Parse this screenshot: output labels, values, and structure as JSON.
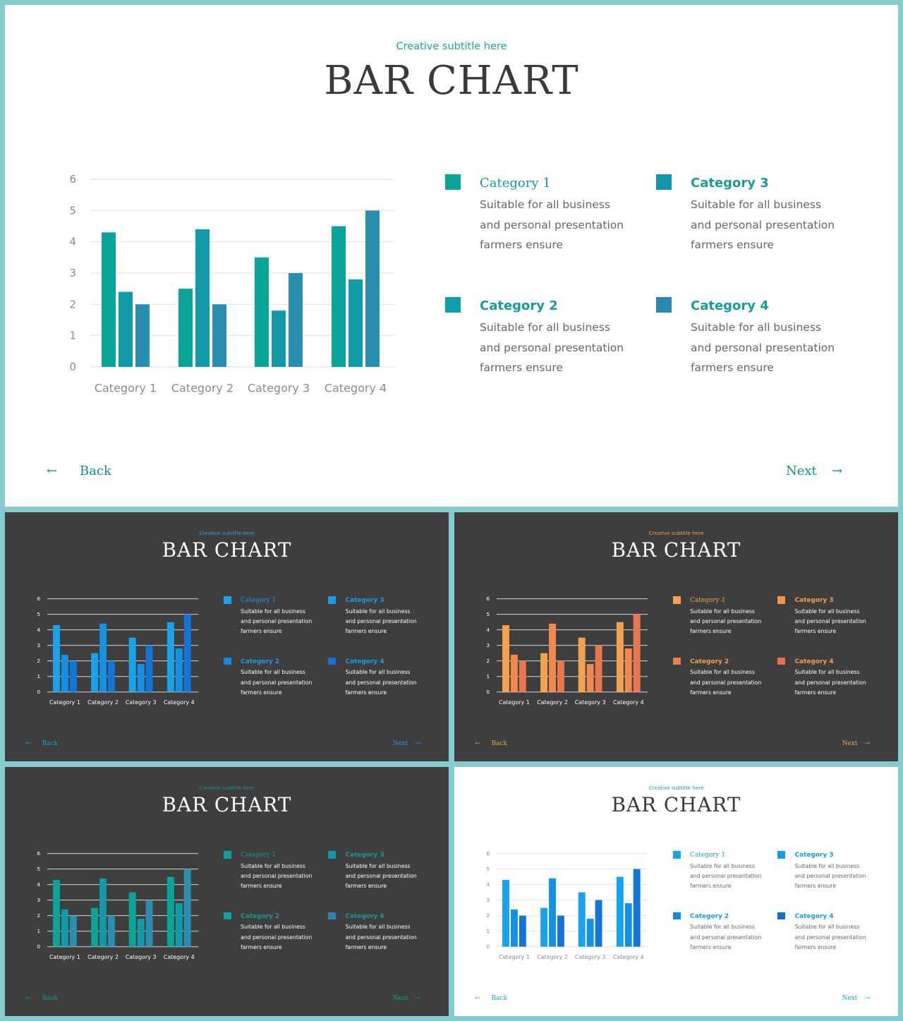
{
  "slide": {
    "subtitle": "Creative subtitle here",
    "title": "BAR CHART",
    "back_arrow": "←",
    "back_label": "Back",
    "next_label": "Next",
    "next_arrow": "→"
  },
  "legend": [
    {
      "name": "Category 1",
      "lines": [
        "Suitable for all business",
        "and personal presentation",
        "farmers ensure"
      ]
    },
    {
      "name": "Category 2",
      "lines": [
        "Suitable for all business",
        "and personal presentation",
        "farmers ensure"
      ]
    },
    {
      "name": "Category 3",
      "lines": [
        "Suitable for all business",
        "and personal presentation",
        "farmers ensure"
      ]
    },
    {
      "name": "Category 4",
      "lines": [
        "Suitable for all business",
        "and personal presentation",
        "farmers ensure"
      ]
    }
  ],
  "chart_data": {
    "type": "bar",
    "categories": [
      "Category 1",
      "Category 2",
      "Category 3",
      "Category 4"
    ],
    "series": [
      {
        "values": [
          4.3,
          2.5,
          3.5,
          4.5
        ]
      },
      {
        "values": [
          2.4,
          4.4,
          1.8,
          2.8
        ]
      },
      {
        "values": [
          2.0,
          2.0,
          3.0,
          5.0
        ]
      }
    ],
    "yticks": [
      0,
      1,
      2,
      3,
      4,
      5,
      6
    ],
    "ylim": [
      0,
      6
    ],
    "grid": true,
    "legend": "right"
  },
  "themes": {
    "main": {
      "background": "#ffffff",
      "title": "#3a3a3a",
      "subtitle": "#1fa39d",
      "body": "#666666",
      "axis": "#8a8a8a",
      "grid": "#e4e4e4",
      "legend_name": "#1b9a96",
      "nav": "#169189",
      "series": [
        "#0aa49a",
        "#139aa9",
        "#2b8db0"
      ],
      "legend_swatches": [
        "#0aa49a",
        "#0ea0aa",
        "#1396a9",
        "#2a88b2"
      ]
    },
    "blue_dark": {
      "background": "#3e3e3e",
      "title": "#ffffff",
      "subtitle": "#2ea3e0",
      "body": "#ffffff",
      "axis": "#ffffff",
      "grid": "#d6d6d6",
      "legend_name": "#1b9ce3",
      "nav": "#1b9ce3",
      "series": [
        "#1aa2ea",
        "#1790e4",
        "#1375d6"
      ],
      "legend_swatches": [
        "#1aa2ea",
        "#1488e0",
        "#1a9ae6",
        "#1271d4"
      ]
    },
    "orange_dark": {
      "background": "#3e3e3e",
      "title": "#ffffff",
      "subtitle": "#f09a4a",
      "body": "#ffffff",
      "axis": "#ffffff",
      "grid": "#d6d6d6",
      "legend_name": "#f0a04d",
      "nav": "#f0a04d",
      "series": [
        "#f4a24f",
        "#ef8a4f",
        "#e8764f"
      ],
      "legend_swatches": [
        "#f4a24f",
        "#ec8050",
        "#f29350",
        "#e66f4f"
      ]
    },
    "teal_dark": {
      "background": "#3e3e3e",
      "title": "#ffffff",
      "subtitle": "#139a95",
      "body": "#ffffff",
      "axis": "#ffffff",
      "grid": "#d6d6d6",
      "legend_name": "#139a95",
      "nav": "#139a95",
      "series": [
        "#0aa49a",
        "#139aa9",
        "#2b8db0"
      ],
      "legend_swatches": [
        "#0aa49a",
        "#0ea0aa",
        "#1396a9",
        "#2a88b2"
      ]
    },
    "blue_light": {
      "background": "#ffffff",
      "title": "#3a3a3a",
      "subtitle": "#1fa39d",
      "body": "#666666",
      "axis": "#8a8a8a",
      "grid": "#e4e4e4",
      "legend_name": "#1b9ce3",
      "nav": "#1b9ce3",
      "series": [
        "#1aa2ea",
        "#1790e4",
        "#1375d6"
      ],
      "legend_swatches": [
        "#1aa2ea",
        "#1488e0",
        "#1a9ae6",
        "#1271d4"
      ]
    }
  }
}
